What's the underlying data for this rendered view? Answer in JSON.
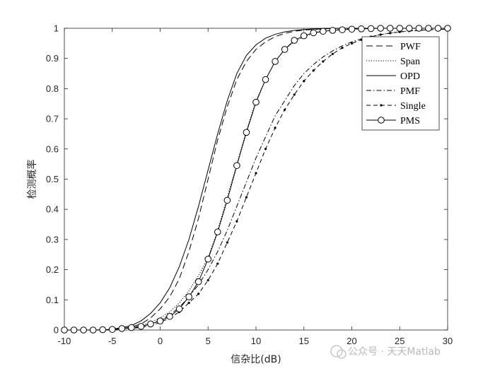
{
  "chart_data": {
    "type": "line",
    "title": "",
    "xlabel": "信杂比(dB)",
    "ylabel": "检测概率",
    "xlim": [
      -10,
      30
    ],
    "ylim": [
      0,
      1
    ],
    "grid": false,
    "legend_position": "top-right",
    "x_ticks": [
      "-10",
      "-5",
      "0",
      "5",
      "10",
      "15",
      "20",
      "25",
      "30"
    ],
    "y_ticks": [
      "0",
      "0.1",
      "0.2",
      "0.3",
      "0.4",
      "0.5",
      "0.6",
      "0.7",
      "0.8",
      "0.9",
      "1"
    ],
    "x": [
      -10,
      -9,
      -8,
      -7,
      -6,
      -5,
      -4,
      -3,
      -2,
      -1,
      0,
      1,
      2,
      3,
      4,
      5,
      6,
      7,
      8,
      9,
      10,
      11,
      12,
      13,
      14,
      15,
      16,
      17,
      18,
      19,
      20,
      21,
      22,
      23,
      24,
      25,
      26,
      27,
      28,
      29,
      30
    ],
    "series": [
      {
        "name": "PWF",
        "style": "dashed",
        "values": [
          0,
          0,
          0,
          0,
          0,
          0.002,
          0.005,
          0.01,
          0.02,
          0.04,
          0.07,
          0.11,
          0.17,
          0.26,
          0.37,
          0.5,
          0.63,
          0.74,
          0.83,
          0.89,
          0.93,
          0.955,
          0.972,
          0.983,
          0.99,
          0.994,
          0.996,
          0.998,
          0.999,
          1,
          1,
          1,
          1,
          1,
          1,
          1,
          1,
          1,
          1,
          1,
          1
        ]
      },
      {
        "name": "Span",
        "style": "dotted",
        "values": [
          0,
          0,
          0,
          0,
          0,
          0.002,
          0.004,
          0.008,
          0.015,
          0.025,
          0.04,
          0.06,
          0.09,
          0.13,
          0.18,
          0.24,
          0.33,
          0.44,
          0.55,
          0.66,
          0.76,
          0.83,
          0.89,
          0.93,
          0.955,
          0.972,
          0.983,
          0.99,
          0.994,
          0.997,
          0.998,
          0.999,
          1,
          1,
          1,
          1,
          1,
          1,
          1,
          1,
          1
        ]
      },
      {
        "name": "OPD",
        "style": "solid",
        "values": [
          0,
          0,
          0,
          0,
          0,
          0.003,
          0.008,
          0.015,
          0.03,
          0.055,
          0.09,
          0.14,
          0.21,
          0.3,
          0.41,
          0.53,
          0.65,
          0.76,
          0.85,
          0.91,
          0.945,
          0.967,
          0.98,
          0.988,
          0.993,
          0.996,
          0.998,
          0.999,
          1,
          1,
          1,
          1,
          1,
          1,
          1,
          1,
          1,
          1,
          1,
          1,
          1
        ]
      },
      {
        "name": "PMF",
        "style": "dashdot",
        "values": [
          0,
          0,
          0,
          0,
          0,
          0.002,
          0.004,
          0.007,
          0.012,
          0.02,
          0.032,
          0.05,
          0.075,
          0.11,
          0.15,
          0.2,
          0.26,
          0.33,
          0.41,
          0.49,
          0.57,
          0.64,
          0.71,
          0.76,
          0.81,
          0.85,
          0.88,
          0.905,
          0.925,
          0.942,
          0.955,
          0.965,
          0.973,
          0.979,
          0.984,
          0.988,
          0.991,
          0.993,
          0.995,
          0.996,
          0.997
        ]
      },
      {
        "name": "Single",
        "style": "dashed-point",
        "values": [
          0,
          0,
          0,
          0,
          0,
          0.001,
          0.003,
          0.005,
          0.009,
          0.015,
          0.025,
          0.04,
          0.06,
          0.09,
          0.12,
          0.165,
          0.22,
          0.29,
          0.36,
          0.44,
          0.52,
          0.6,
          0.67,
          0.73,
          0.78,
          0.825,
          0.86,
          0.89,
          0.915,
          0.935,
          0.95,
          0.962,
          0.972,
          0.979,
          0.984,
          0.988,
          0.991,
          0.993,
          0.995,
          0.996,
          0.997
        ]
      },
      {
        "name": "PMS",
        "style": "solid-circle",
        "values": [
          0,
          0,
          0,
          0,
          0.001,
          0.002,
          0.005,
          0.008,
          0.012,
          0.02,
          0.03,
          0.045,
          0.07,
          0.11,
          0.16,
          0.235,
          0.325,
          0.43,
          0.545,
          0.655,
          0.755,
          0.83,
          0.89,
          0.93,
          0.96,
          0.975,
          0.985,
          0.99,
          0.993,
          0.995,
          0.997,
          0.998,
          0.999,
          1,
          1,
          1,
          1,
          1,
          1,
          1,
          1
        ]
      }
    ]
  },
  "watermark": "公众号 · 天天Matlab"
}
